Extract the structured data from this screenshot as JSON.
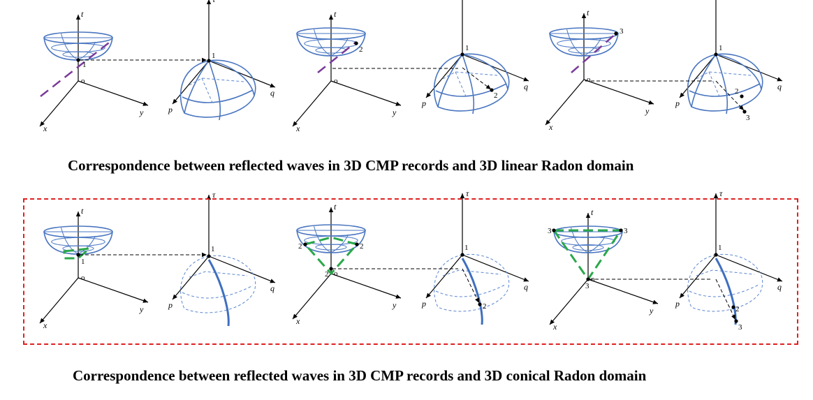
{
  "captions": {
    "linear": "Correspondence between reflected waves in 3D CMP records and 3D linear Radon domain",
    "conical": "Correspondence between reflected waves in 3D CMP records and 3D conical Radon domain"
  },
  "axis_labels": {
    "cmp": {
      "time": "t",
      "x": "x",
      "y": "y",
      "origin": "o"
    },
    "radon": {
      "tau": "τ",
      "p": "p",
      "q": "q"
    }
  },
  "point_labels": [
    "1",
    "2",
    "3"
  ],
  "colors": {
    "wireframe": "#4a76c0",
    "linear_event": "#7a3b9a",
    "conical_event": "#2aa84a",
    "highlight_frame": "#e02020"
  }
}
